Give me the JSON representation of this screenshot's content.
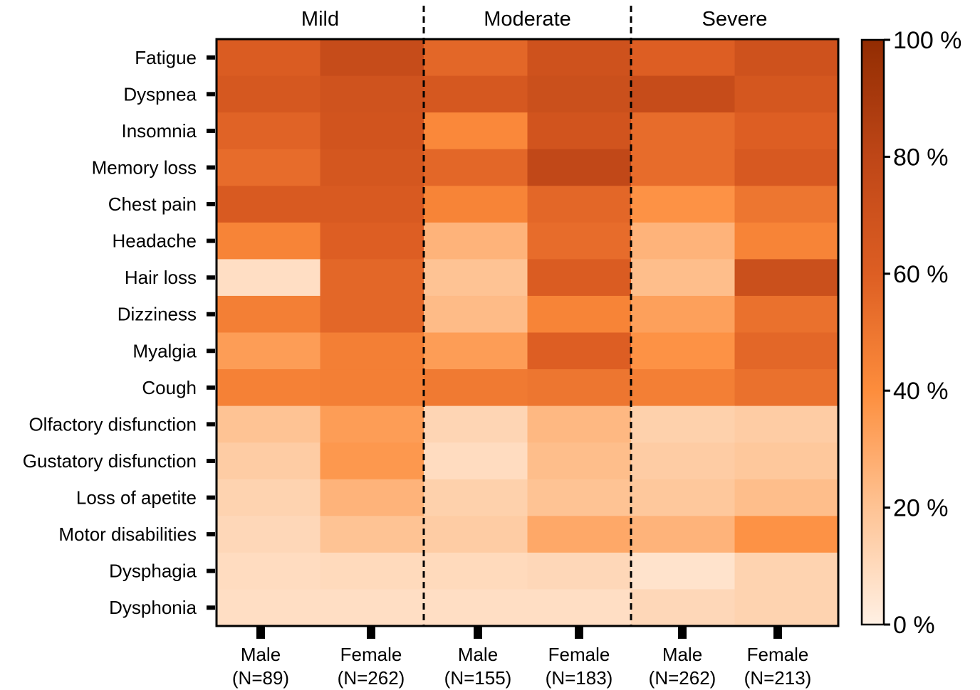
{
  "chart_data": {
    "type": "heatmap",
    "title": "",
    "xlabel": "",
    "ylabel": "",
    "groups": [
      "Mild",
      "Moderate",
      "Severe"
    ],
    "columns": [
      {
        "group": "Mild",
        "line1": "Male",
        "line2": "(N=89)"
      },
      {
        "group": "Mild",
        "line1": "Female",
        "line2": "(N=262)"
      },
      {
        "group": "Moderate",
        "line1": "Male",
        "line2": "(N=155)"
      },
      {
        "group": "Moderate",
        "line1": "Female",
        "line2": "(N=183)"
      },
      {
        "group": "Severe",
        "line1": "Male",
        "line2": "(N=262)"
      },
      {
        "group": "Severe",
        "line1": "Female",
        "line2": "(N=213)"
      }
    ],
    "rows": [
      "Fatigue",
      "Dyspnea",
      "Insomnia",
      "Memory loss",
      "Chest pain",
      "Headache",
      "Hair loss",
      "Dizziness",
      "Myalgia",
      "Cough",
      "Olfactory disfunction",
      "Gustatory disfunction",
      "Loss of apetite",
      "Motor disabilities",
      "Dysphagia",
      "Dysphonia"
    ],
    "values": [
      [
        62,
        75,
        56,
        70,
        60,
        70
      ],
      [
        65,
        69,
        65,
        72,
        75,
        66
      ],
      [
        58,
        68,
        42,
        68,
        54,
        60
      ],
      [
        54,
        66,
        56,
        78,
        54,
        64
      ],
      [
        63,
        63,
        44,
        56,
        38,
        50
      ],
      [
        44,
        60,
        26,
        54,
        26,
        44
      ],
      [
        8,
        56,
        20,
        62,
        22,
        72
      ],
      [
        46,
        56,
        23,
        44,
        33,
        52
      ],
      [
        34,
        46,
        34,
        60,
        38,
        56
      ],
      [
        45,
        46,
        48,
        50,
        46,
        52
      ],
      [
        20,
        34,
        12,
        24,
        14,
        16
      ],
      [
        16,
        36,
        9,
        22,
        16,
        18
      ],
      [
        13,
        26,
        14,
        20,
        18,
        22
      ],
      [
        11,
        20,
        16,
        30,
        26,
        38
      ],
      [
        9,
        10,
        10,
        11,
        6,
        13
      ],
      [
        8,
        8,
        8,
        8,
        11,
        13
      ]
    ],
    "colorbar": {
      "min": 0,
      "max": 100,
      "ticks": [
        0,
        20,
        40,
        60,
        80,
        100
      ],
      "tick_labels": [
        "0 %",
        "20 %",
        "40 %",
        "60 %",
        "80 %",
        "100 %"
      ],
      "colors": {
        "0": "#fff0e4",
        "20": "#fec394",
        "40": "#fd8d3c",
        "60": "#dd5e23",
        "80": "#be4617",
        "100": "#922c02"
      }
    },
    "group_separators": "dashed",
    "legend_position": "right"
  }
}
